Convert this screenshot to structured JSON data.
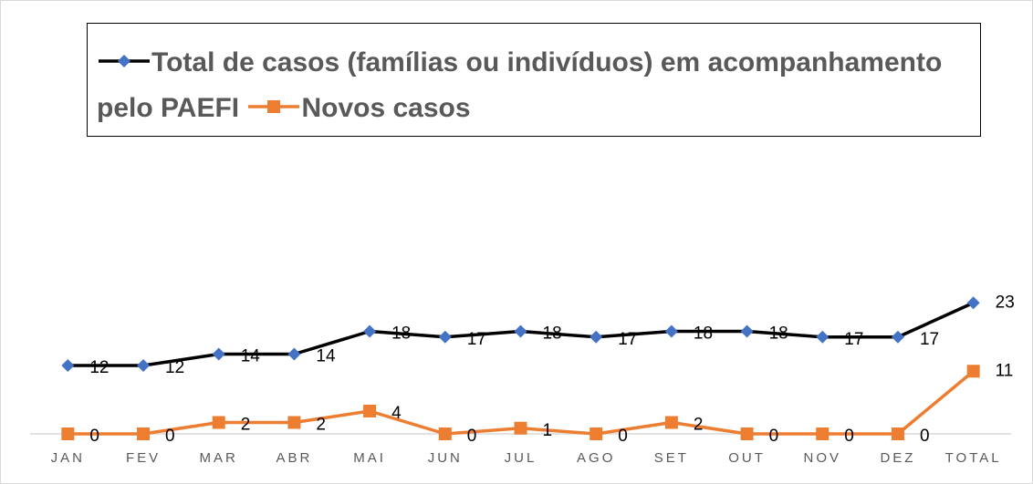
{
  "chart_data": {
    "type": "line",
    "categories": [
      "JAN",
      "FEV",
      "MAR",
      "ABR",
      "MAI",
      "JUN",
      "JUL",
      "AGO",
      "SET",
      "OUT",
      "NOV",
      "DEZ",
      "TOTAL"
    ],
    "series": [
      {
        "name": "Total de casos (famílias ou indivíduos) em acompanhamento pelo PAEFI",
        "color": "#000000",
        "marker_color": "#4472c4",
        "marker": "diamond",
        "values": [
          12,
          12,
          14,
          14,
          18,
          17,
          18,
          17,
          18,
          18,
          17,
          17,
          23
        ]
      },
      {
        "name": "Novos casos",
        "color": "#ed7d31",
        "marker_color": "#ed7d31",
        "marker": "square",
        "values": [
          0,
          0,
          2,
          2,
          4,
          0,
          1,
          0,
          2,
          0,
          0,
          0,
          11
        ]
      }
    ],
    "ylim": [
      0,
      50
    ],
    "legend": "top",
    "grid": false
  }
}
